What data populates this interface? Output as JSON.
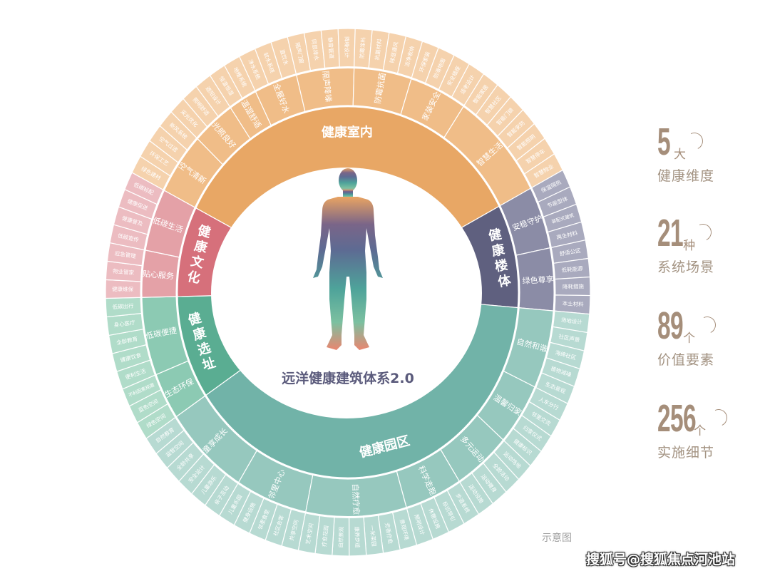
{
  "title": "远洋健康建筑体系2.0",
  "dimensions": [
    {
      "name": "健康室内",
      "colors": {
        "inner": "#e8a765",
        "middle": "#f0bd88",
        "outer": "#f5d2ad"
      },
      "scenes": [
        {
          "name": "空气清新",
          "elements": [
            "绿色建材",
            "环保工艺",
            "空气过滤",
            "新风系统"
          ]
        },
        {
          "name": "光照良好",
          "elements": [
            "采光优化",
            "照明舒适",
            "遮阳设计"
          ]
        },
        {
          "name": "温湿舒适",
          "elements": [
            "恒温恒湿",
            "地暖系统"
          ]
        },
        {
          "name": "全屋好水",
          "elements": [
            "净水系统",
            "软水系统",
            "直饮水"
          ]
        },
        {
          "name": "隔声降噪",
          "elements": [
            "隔声门窗",
            "同层排水",
            "静音管道",
            "降噪设计"
          ]
        },
        {
          "name": "防霉抗菌",
          "elements": [
            "防霉涂料",
            "抗菌材料",
            "除湿通风",
            "洁净收纳"
          ]
        },
        {
          "name": "家装安全",
          "elements": [
            "环保家装",
            "防滑地面",
            "安全插座",
            "适老设计"
          ]
        },
        {
          "name": "智慧生活",
          "elements": [
            "智能家居",
            "智慧社区",
            "智能门锁",
            "智能安防",
            "智能照明",
            "智慧停车",
            "智慧物业"
          ]
        }
      ]
    },
    {
      "name": "健康楼体",
      "colors": {
        "inner": "#5f607f",
        "middle": "#8b8ca6",
        "outer": "#a9aabe"
      },
      "scenes": [
        {
          "name": "安稳守护",
          "elements": [
            "保温隔热",
            "节能型体",
            "装配式建筑",
            "再生材料"
          ]
        },
        {
          "name": "绿色尊享",
          "elements": [
            "舒适公区",
            "低耗能源",
            "降耗措施",
            "本土材料"
          ]
        }
      ]
    },
    {
      "name": "健康园区",
      "colors": {
        "inner": "#71b3a8",
        "middle": "#96c8be",
        "outer": "#b7dad2"
      },
      "scenes": [
        {
          "name": "自然和谐",
          "elements": [
            "场地设计",
            "社区声景",
            "海绵社区",
            "植物减噪",
            "生态景观"
          ]
        },
        {
          "name": "温馨归家",
          "elements": [
            "人车分行",
            "邻里交流",
            "归家仪式",
            "健康标识"
          ]
        },
        {
          "name": "多元运动",
          "elements": [
            "运动场地",
            "全龄活动",
            "运动健身",
            "运动设施"
          ]
        },
        {
          "name": "科学走跑",
          "elements": [
            "步道系统",
            "标识导引",
            "休憩设施",
            "照明设计"
          ]
        },
        {
          "name": "自然疗愈",
          "elements": [
            "景观环境",
            "芳香疗愈",
            "一米菜园",
            "康养步道",
            "自然景观",
            "疗愈花园",
            "艺术空间"
          ]
        },
        {
          "name": "邻里中心",
          "elements": [
            "共享空间",
            "社区会客",
            "邻里食堂",
            "健身设施",
            "儿童乐园"
          ]
        },
        {
          "name": "童享成长",
          "elements": [
            "亲子互动",
            "儿童游乐",
            "安全设计",
            "全龄共享",
            "益智空间",
            "自然教育"
          ]
        }
      ]
    },
    {
      "name": "健康选址",
      "colors": {
        "inner": "#5aad92",
        "middle": "#8ccab3",
        "outer": "#b0dcc9"
      },
      "scenes": [
        {
          "name": "生态环保",
          "elements": [
            "绿色空间",
            "蓝色空间",
            "不利因素规避"
          ]
        },
        {
          "name": "低碳便捷",
          "elements": [
            "便利生活",
            "健康饮食",
            "全龄教育",
            "身心医疗",
            "低碳出行"
          ]
        }
      ]
    },
    {
      "name": "健康文化",
      "colors": {
        "inner": "#d6707b",
        "middle": "#e4a1a7",
        "outer": "#ecbcc1"
      },
      "scenes": [
        {
          "name": "贴心服务",
          "elements": [
            "健康维保",
            "物业管家",
            "应急管理"
          ]
        },
        {
          "name": "低碳生活",
          "elements": [
            "低碳宣传",
            "健康普及",
            "健康促进",
            "低碳标配"
          ]
        }
      ]
    }
  ],
  "stats": [
    {
      "value": "5",
      "unit": "大",
      "label": "健康维度"
    },
    {
      "value": "21",
      "unit": "种",
      "label": "系统场景"
    },
    {
      "value": "89",
      "unit": "个",
      "label": "价值要素"
    },
    {
      "value": "256",
      "unit": "个",
      "label": "实施细节"
    }
  ],
  "caption": "示意图",
  "watermark": "搜狐号@搜狐焦点河池站",
  "colors": {
    "stat_text": "#a58e7a",
    "title_text": "#5b5b7c"
  }
}
